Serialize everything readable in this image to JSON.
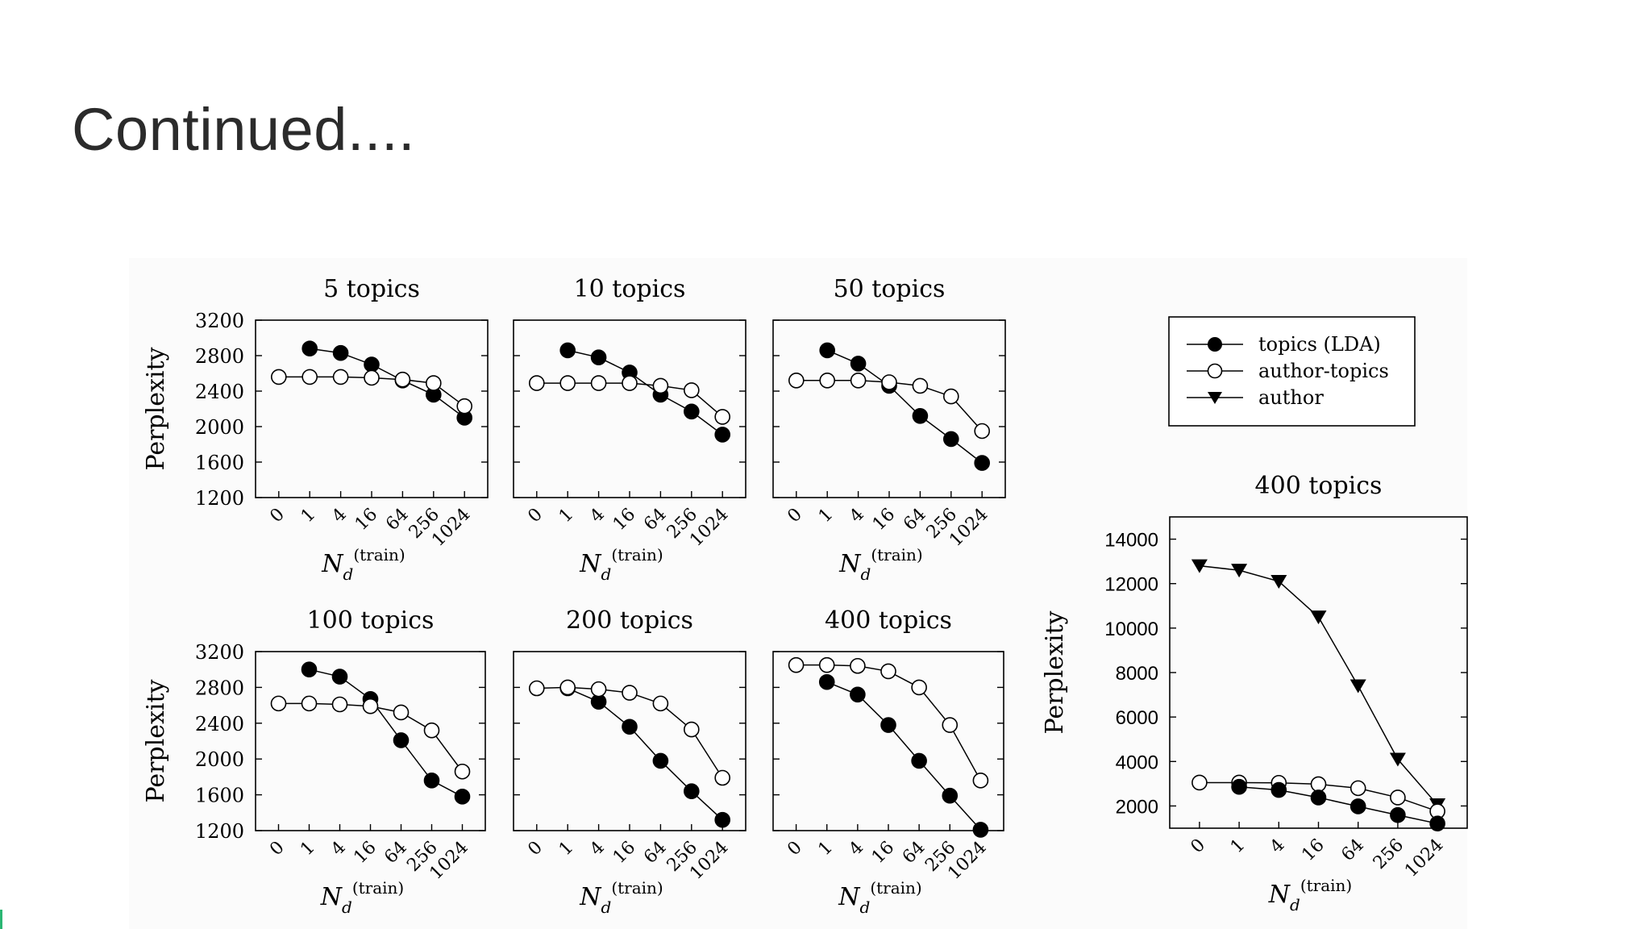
{
  "slide": {
    "title": "Continued...."
  },
  "colors": {
    "accent": "#2bb673",
    "ink": "#000000",
    "title": "#2b2b2b"
  },
  "legend": {
    "entries": [
      {
        "label": "topics (LDA)",
        "marker": "filled-circle"
      },
      {
        "label": "author-topics",
        "marker": "open-circle"
      },
      {
        "label": "author",
        "marker": "filled-triangle-down"
      }
    ]
  },
  "chart_data": [
    {
      "type": "line",
      "title": "5 topics",
      "categories": [
        "0",
        "1",
        "4",
        "16",
        "64",
        "256",
        "1024"
      ],
      "xlabel": "N_d (train)",
      "ylabel": "Perplexity",
      "ylim": [
        1200,
        3200
      ],
      "yticks": [
        1200,
        1600,
        2000,
        2400,
        2800,
        3200
      ],
      "series": [
        {
          "name": "topics (LDA)",
          "marker": "filled-circle",
          "values": [
            null,
            2880,
            2830,
            2700,
            2520,
            2360,
            2100
          ]
        },
        {
          "name": "author-topics",
          "marker": "open-circle",
          "values": [
            2560,
            2560,
            2560,
            2550,
            2530,
            2490,
            2230
          ]
        }
      ]
    },
    {
      "type": "line",
      "title": "10 topics",
      "categories": [
        "0",
        "1",
        "4",
        "16",
        "64",
        "256",
        "1024"
      ],
      "xlabel": "N_d (train)",
      "ylabel": "",
      "ylim": [
        1200,
        3200
      ],
      "yticks": [],
      "series": [
        {
          "name": "topics (LDA)",
          "marker": "filled-circle",
          "values": [
            null,
            2860,
            2780,
            2610,
            2360,
            2170,
            1910
          ]
        },
        {
          "name": "author-topics",
          "marker": "open-circle",
          "values": [
            2490,
            2490,
            2490,
            2490,
            2460,
            2410,
            2110
          ]
        }
      ]
    },
    {
      "type": "line",
      "title": "50 topics",
      "categories": [
        "0",
        "1",
        "4",
        "16",
        "64",
        "256",
        "1024"
      ],
      "xlabel": "N_d (train)",
      "ylabel": "",
      "ylim": [
        1200,
        3200
      ],
      "yticks": [],
      "series": [
        {
          "name": "topics (LDA)",
          "marker": "filled-circle",
          "values": [
            null,
            2860,
            2710,
            2460,
            2120,
            1860,
            1590
          ]
        },
        {
          "name": "author-topics",
          "marker": "open-circle",
          "values": [
            2520,
            2520,
            2520,
            2500,
            2460,
            2340,
            1950
          ]
        }
      ]
    },
    {
      "type": "line",
      "title": "100 topics",
      "categories": [
        "0",
        "1",
        "4",
        "16",
        "64",
        "256",
        "1024"
      ],
      "xlabel": "N_d (train)",
      "ylabel": "Perplexity",
      "ylim": [
        1200,
        3200
      ],
      "yticks": [
        1200,
        1600,
        2000,
        2400,
        2800,
        3200
      ],
      "series": [
        {
          "name": "topics (LDA)",
          "marker": "filled-circle",
          "values": [
            null,
            3000,
            2920,
            2670,
            2210,
            1760,
            1580
          ]
        },
        {
          "name": "author-topics",
          "marker": "open-circle",
          "values": [
            2620,
            2620,
            2610,
            2590,
            2520,
            2320,
            1860
          ]
        }
      ]
    },
    {
      "type": "line",
      "title": "200 topics",
      "categories": [
        "0",
        "1",
        "4",
        "16",
        "64",
        "256",
        "1024"
      ],
      "xlabel": "N_d (train)",
      "ylabel": "",
      "ylim": [
        1200,
        3200
      ],
      "yticks": [],
      "series": [
        {
          "name": "topics (LDA)",
          "marker": "filled-circle",
          "values": [
            null,
            2790,
            2640,
            2360,
            1980,
            1640,
            1320
          ]
        },
        {
          "name": "author-topics",
          "marker": "open-circle",
          "values": [
            2790,
            2800,
            2780,
            2740,
            2620,
            2330,
            1790
          ]
        }
      ]
    },
    {
      "type": "line",
      "title": "400 topics",
      "categories": [
        "0",
        "1",
        "4",
        "16",
        "64",
        "256",
        "1024"
      ],
      "xlabel": "N_d (train)",
      "ylabel": "",
      "ylim": [
        1200,
        3200
      ],
      "yticks": [],
      "series": [
        {
          "name": "topics (LDA)",
          "marker": "filled-circle",
          "values": [
            null,
            2860,
            2720,
            2380,
            1980,
            1590,
            1210
          ]
        },
        {
          "name": "author-topics",
          "marker": "open-circle",
          "values": [
            3050,
            3050,
            3040,
            2980,
            2800,
            2380,
            1760
          ]
        }
      ]
    },
    {
      "type": "line",
      "title": "400 topics",
      "categories": [
        "0",
        "1",
        "4",
        "16",
        "64",
        "256",
        "1024"
      ],
      "xlabel": "N_d (train)",
      "ylabel": "Perplexity",
      "ylim": [
        1000,
        15000
      ],
      "yticks": [
        2000,
        4000,
        6000,
        8000,
        10000,
        12000,
        14000
      ],
      "series": [
        {
          "name": "author",
          "marker": "filled-triangle-down",
          "values": [
            12800,
            12600,
            12100,
            10500,
            7400,
            4100,
            2050
          ]
        },
        {
          "name": "author-topics",
          "marker": "open-circle",
          "values": [
            3050,
            3050,
            3040,
            2980,
            2800,
            2380,
            1760
          ]
        },
        {
          "name": "topics (LDA)",
          "marker": "filled-circle",
          "values": [
            null,
            2860,
            2720,
            2380,
            1980,
            1590,
            1210
          ]
        }
      ]
    }
  ]
}
